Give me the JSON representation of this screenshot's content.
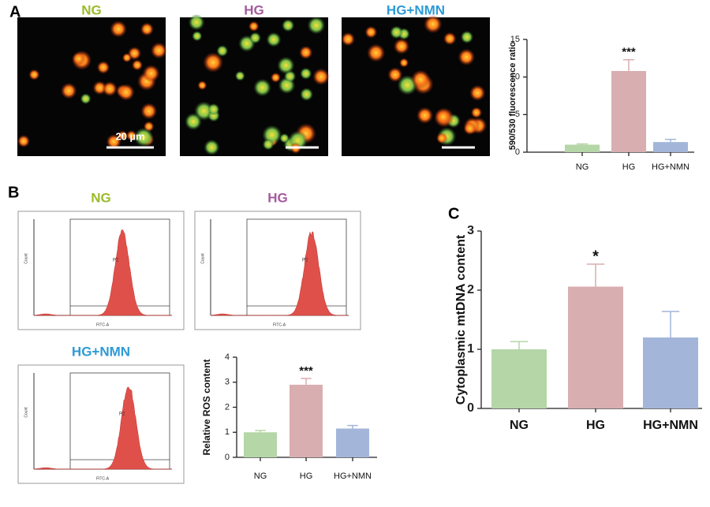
{
  "panel_labels": [
    "A",
    "B",
    "C"
  ],
  "images": {
    "labels": [
      "NG",
      "HG",
      "HG+NMN"
    ],
    "label_colors": [
      "#9bbb2a",
      "#a45a9c",
      "#2e9ad6"
    ],
    "scale_bar": "20 µm"
  },
  "flow": {
    "titles": [
      "NG",
      "HG",
      "HG+NMN"
    ],
    "gate": "P2",
    "x_label": "FITC-A",
    "y_label": "Count"
  },
  "chart_data": [
    {
      "type": "bar",
      "y_label": "590/530 fluorescence ratio",
      "categories": [
        "NG",
        "HG",
        "HG+NMN"
      ],
      "values": [
        1.0,
        10.8,
        1.35
      ],
      "errors": [
        0.1,
        1.5,
        0.35
      ],
      "colors": [
        "#b5d6a7",
        "#d9aeb0",
        "#a3b6d9"
      ],
      "ylim": [
        0,
        15
      ],
      "yticks": [
        0,
        5,
        10,
        15
      ],
      "annotations": [
        {
          "text": "***",
          "x": "HG"
        }
      ]
    },
    {
      "type": "bar",
      "y_label": "Relative ROS content",
      "categories": [
        "NG",
        "HG",
        "HG+NMN"
      ],
      "values": [
        1.0,
        2.9,
        1.15
      ],
      "errors": [
        0.07,
        0.25,
        0.12
      ],
      "colors": [
        "#b5d6a7",
        "#d9aeb0",
        "#a3b6d9"
      ],
      "ylim": [
        0,
        4
      ],
      "yticks": [
        0,
        1,
        2,
        3,
        4
      ],
      "annotations": [
        {
          "text": "***",
          "x": "HG"
        }
      ]
    },
    {
      "type": "bar",
      "y_label": "Cytoplasmic mtDNA content",
      "categories": [
        "NG",
        "HG",
        "HG+NMN"
      ],
      "values": [
        1.0,
        2.06,
        1.2
      ],
      "errors": [
        0.13,
        0.38,
        0.44
      ],
      "colors": [
        "#b5d6a7",
        "#d9aeb0",
        "#a3b6d9"
      ],
      "ylim": [
        0,
        3
      ],
      "yticks": [
        0,
        1,
        2,
        3
      ],
      "annotations": [
        {
          "text": "*",
          "x": "HG"
        }
      ]
    }
  ]
}
